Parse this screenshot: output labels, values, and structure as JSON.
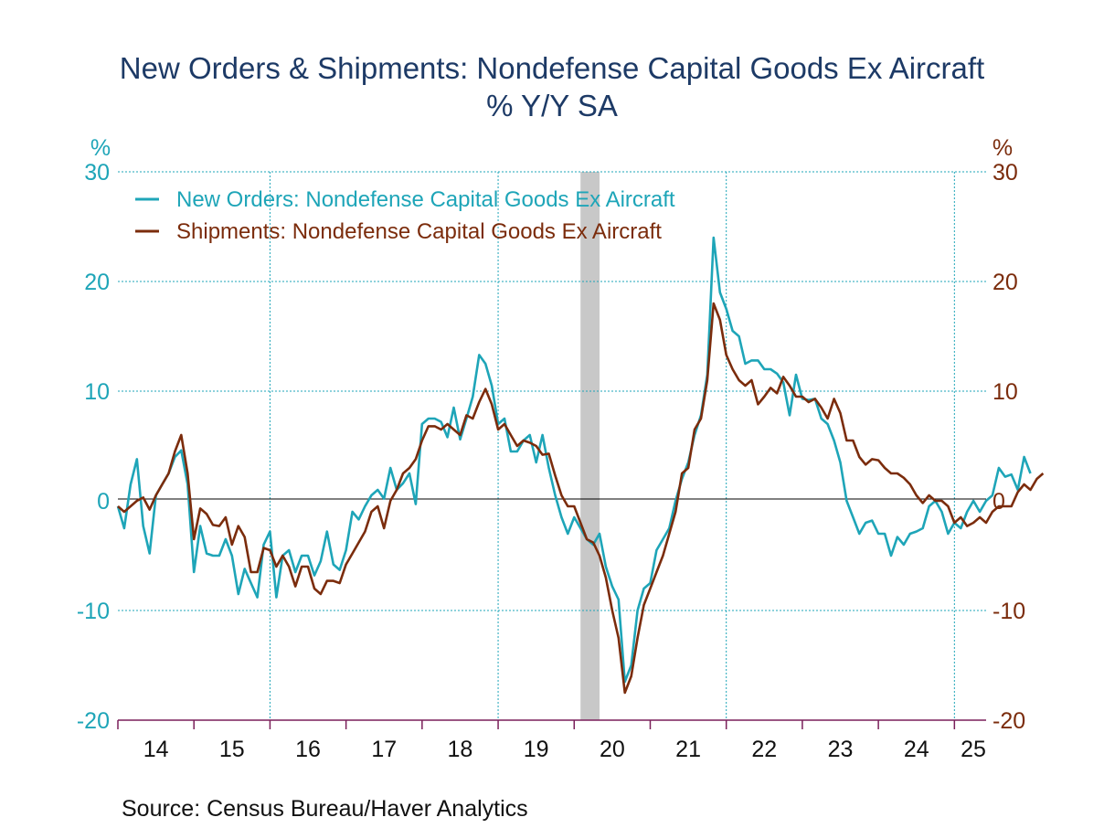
{
  "chart_data": {
    "type": "line",
    "title": "New Orders & Shipments: Nondefense Capital Goods Ex Aircraft",
    "subtitle": "% Y/Y   SA",
    "source": "Source:  Census Bureau/Haver Analytics",
    "x_start": "2014-01",
    "xlim": [
      "2014-01",
      "2025-06"
    ],
    "x_tick_labels": [
      "14",
      "15",
      "16",
      "17",
      "18",
      "19",
      "20",
      "21",
      "22",
      "23",
      "24",
      "25"
    ],
    "ylim": [
      -20,
      30
    ],
    "yticks": [
      -20,
      -10,
      0,
      10,
      20,
      30
    ],
    "ytick_labels": [
      "-20",
      "-10",
      "0",
      "10",
      "20",
      "30"
    ],
    "left_axis_unit": "%",
    "right_axis_unit": "%",
    "recession": {
      "start": "2020-02",
      "end": "2020-04"
    },
    "legend_position": "top-left",
    "grid": true,
    "colors": {
      "orders": "#1ea5b8",
      "shipments": "#7b2c0c",
      "title": "#1d3a66",
      "recession": "#c8c8c8"
    },
    "series": [
      {
        "name": "New Orders: Nondefense Capital Goods Ex Aircraft",
        "values": [
          -0.5,
          -2.5,
          1.5,
          3.8,
          -2.3,
          -4.8,
          0.5,
          1.5,
          2.5,
          4.0,
          4.6,
          1.5,
          -6.5,
          -2.3,
          -4.8,
          -5.0,
          -5.0,
          -3.5,
          -5.0,
          -8.5,
          -6.2,
          -7.5,
          -8.8,
          -4.0,
          -2.8,
          -8.8,
          -5.0,
          -4.5,
          -6.5,
          -5.0,
          -5.0,
          -6.8,
          -5.5,
          -2.8,
          -5.8,
          -6.3,
          -4.5,
          -1.0,
          -1.7,
          -0.5,
          0.5,
          1.0,
          0.2,
          3.0,
          1.0,
          1.6,
          2.5,
          -0.3,
          7.0,
          7.5,
          7.5,
          7.2,
          5.8,
          8.5,
          5.6,
          7.5,
          9.5,
          13.3,
          12.5,
          10.5,
          7.0,
          7.5,
          4.5,
          4.5,
          5.5,
          6.0,
          3.5,
          6.0,
          3.0,
          0.5,
          -1.5,
          -3.0,
          -1.5,
          -2.5,
          -3.5,
          -4.0,
          -3.0,
          -6.0,
          -7.8,
          -9.0,
          -16.5,
          -15.0,
          -10.0,
          -8.0,
          -7.5,
          -4.5,
          -3.5,
          -2.5,
          0.0,
          2.0,
          3.5,
          6.0,
          7.8,
          11.5,
          24.0,
          19.0,
          17.5,
          15.5,
          15.0,
          12.5,
          12.8,
          12.8,
          12.0,
          12.0,
          11.6,
          10.8,
          7.8,
          11.5,
          9.3,
          9.2,
          9.3,
          7.5,
          7.0,
          5.5,
          3.5,
          0.0,
          -1.5,
          -3.0,
          -2.0,
          -1.8,
          -3.0,
          -3.0,
          -5.0,
          -3.3,
          -4.0,
          -3.0,
          -2.8,
          -2.5,
          -0.5,
          0.0,
          -1.0,
          -3.0,
          -2.0,
          -2.5,
          -1.0,
          0.0,
          -1.0,
          0.0,
          0.5,
          3.0,
          2.2,
          2.4,
          1.0,
          4.0,
          2.5
        ]
      },
      {
        "name": "Shipments: Nondefense Capital Goods Ex Aircraft",
        "values": [
          -0.5,
          -1.0,
          -0.5,
          0.0,
          0.3,
          -0.8,
          0.5,
          1.5,
          2.5,
          4.5,
          6.0,
          2.5,
          -3.5,
          -0.7,
          -1.2,
          -2.2,
          -2.3,
          -1.5,
          -4.0,
          -2.3,
          -3.3,
          -6.5,
          -6.5,
          -4.3,
          -4.5,
          -6.0,
          -5.0,
          -6.0,
          -7.8,
          -6.0,
          -6.0,
          -8.0,
          -8.5,
          -7.3,
          -7.3,
          -7.5,
          -5.8,
          -4.8,
          -3.8,
          -2.8,
          -1.0,
          -0.5,
          -2.5,
          0.0,
          1.0,
          2.5,
          3.0,
          3.8,
          5.5,
          6.8,
          6.8,
          6.5,
          7.0,
          6.5,
          6.0,
          7.8,
          7.5,
          9.0,
          10.2,
          8.8,
          6.5,
          7.0,
          6.0,
          5.0,
          5.5,
          5.3,
          5.0,
          4.2,
          4.3,
          2.3,
          0.5,
          -0.5,
          -0.5,
          -2.0,
          -3.5,
          -3.8,
          -5.0,
          -7.0,
          -10.0,
          -12.5,
          -17.5,
          -16.0,
          -12.5,
          -9.5,
          -8.0,
          -6.5,
          -5.0,
          -3.0,
          -1.0,
          2.5,
          3.0,
          6.5,
          7.5,
          11.0,
          18.0,
          16.5,
          13.3,
          12.0,
          11.0,
          10.5,
          11.0,
          8.8,
          9.5,
          10.3,
          9.8,
          11.3,
          10.5,
          9.5,
          9.5,
          9.0,
          9.3,
          8.5,
          7.5,
          9.3,
          8.0,
          5.5,
          5.5,
          4.0,
          3.3,
          3.8,
          3.7,
          3.0,
          2.5,
          2.5,
          2.1,
          1.5,
          0.5,
          -0.2,
          0.5,
          0.0,
          0.0,
          -0.5,
          -2.0,
          -1.5,
          -2.3,
          -2.0,
          -1.5,
          -2.0,
          -1.0,
          -0.5,
          -0.5,
          -0.5,
          0.8,
          1.5,
          1.0,
          2.0,
          2.5
        ]
      }
    ]
  }
}
